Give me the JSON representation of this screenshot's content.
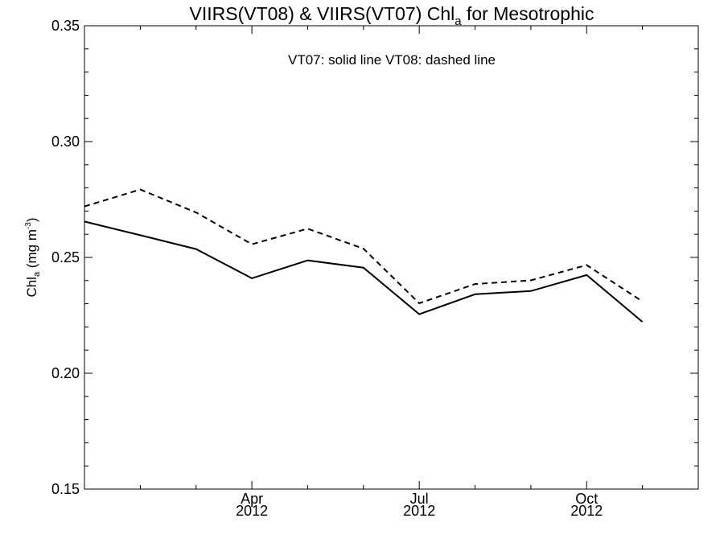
{
  "chart_data": {
    "type": "line",
    "title_main": "VIIRS(VT08) & VIIRS(VT07)  Chl",
    "title_sub": "a",
    "title_rest": " for Mesotrophic",
    "annotation": "VT07: solid line   VT08: dashed line",
    "ylabel_main": "Chl",
    "ylabel_sub": "a",
    "ylabel_unit": " (mg m",
    "ylabel_sup": "-3",
    "ylabel_close": ")",
    "ylim": [
      0.15,
      0.35
    ],
    "yticks": [
      "0.15",
      "0.20",
      "0.25",
      "0.30",
      "0.35"
    ],
    "xlim": [
      "2012-01",
      "2012-12"
    ],
    "xticks": [
      {
        "month": "Apr",
        "year": "2012"
      },
      {
        "month": "Jul",
        "year": "2012"
      },
      {
        "month": "Oct",
        "year": "2012"
      }
    ],
    "x": [
      "2012-01",
      "2012-02",
      "2012-03",
      "2012-04",
      "2012-05",
      "2012-06",
      "2012-07",
      "2012-08",
      "2012-09",
      "2012-10",
      "2012-11"
    ],
    "series": [
      {
        "style": "solid",
        "color": "#000000",
        "values": [
          0.2655,
          0.2596,
          0.2536,
          0.241,
          0.2487,
          0.2456,
          0.2255,
          0.2341,
          0.2355,
          0.2424,
          0.2222
        ]
      },
      {
        "style": "dashed",
        "color": "#000000",
        "values": [
          0.272,
          0.2793,
          0.2694,
          0.2557,
          0.2624,
          0.2538,
          0.2302,
          0.2385,
          0.2401,
          0.2467,
          0.231
        ]
      }
    ],
    "grid": false
  }
}
